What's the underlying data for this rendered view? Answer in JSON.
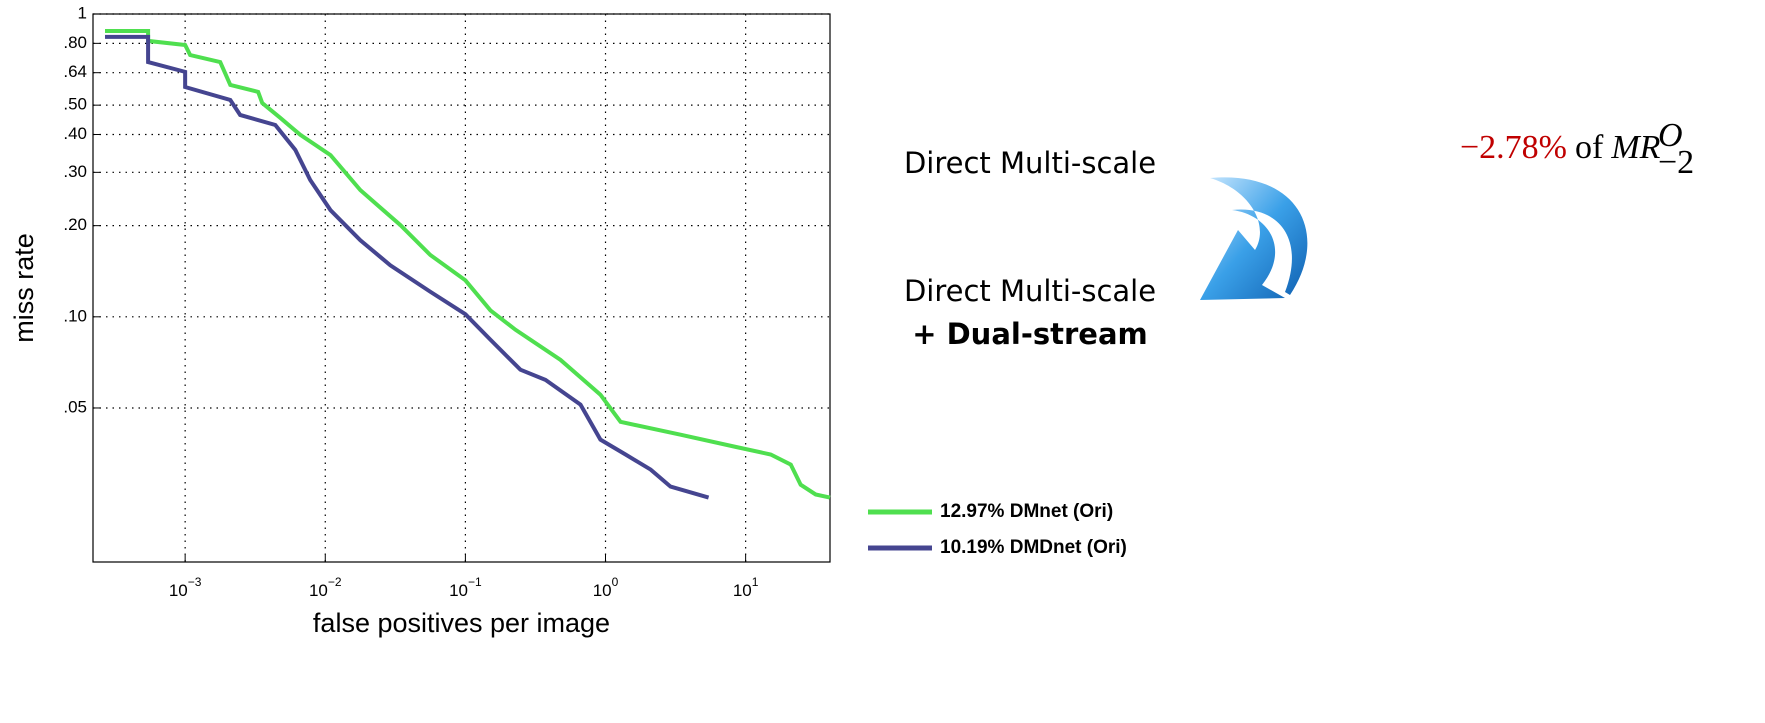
{
  "chart_data": {
    "type": "line",
    "xlabel": "false positives per image",
    "ylabel": "miss rate",
    "xscale": "log",
    "yscale": "log",
    "grid": true,
    "legend": "lower right",
    "xlim": [
      0.00022,
      40
    ],
    "ylim": [
      0.0155,
      1
    ],
    "xticks": [
      {
        "value": 0.001,
        "label": "10",
        "exponent": "−3"
      },
      {
        "value": 0.01,
        "label": "10",
        "exponent": "−2"
      },
      {
        "value": 0.1,
        "label": "10",
        "exponent": "−1"
      },
      {
        "value": 1,
        "label": "10",
        "exponent": "0"
      },
      {
        "value": 10,
        "label": "10",
        "exponent": "1"
      }
    ],
    "yticks": [
      {
        "value": 0.05,
        "label": ".05"
      },
      {
        "value": 0.1,
        "label": ".10"
      },
      {
        "value": 0.2,
        "label": ".20"
      },
      {
        "value": 0.3,
        "label": ".30"
      },
      {
        "value": 0.4,
        "label": ".40"
      },
      {
        "value": 0.5,
        "label": ".50"
      },
      {
        "value": 0.64,
        "label": ".64"
      },
      {
        "value": 0.8,
        "label": ".80"
      },
      1
    ],
    "series": [
      {
        "name": "12.97% DMnet (Ori)",
        "color": "#4fdf4f",
        "x": [
          0.000268,
          0.000544,
          0.000544,
          0.001,
          0.001086,
          0.00178,
          0.0021,
          0.00332,
          0.00355,
          0.00477,
          0.00663,
          0.0109,
          0.0178,
          0.0343,
          0.0562,
          0.1,
          0.151,
          0.228,
          0.477,
          0.92,
          1.28,
          3.43,
          8.48,
          15.1,
          21,
          24.7,
          31.6,
          40
        ],
        "values": [
          0.879,
          0.879,
          0.815,
          0.79,
          0.732,
          0.694,
          0.583,
          0.553,
          0.508,
          0.454,
          0.399,
          0.342,
          0.262,
          0.201,
          0.16,
          0.132,
          0.105,
          0.0906,
          0.0721,
          0.0553,
          0.045,
          0.0408,
          0.0372,
          0.0351,
          0.0325,
          0.0279,
          0.0259,
          0.0253
        ]
      },
      {
        "name": "10.19% DMDnet (Ori)",
        "color": "#454590",
        "x": [
          0.000268,
          0.000544,
          0.000544,
          0.001,
          0.001,
          0.0021,
          0.00247,
          0.0044,
          0.00611,
          0.00781,
          0.0109,
          0.0178,
          0.0291,
          0.0562,
          0.1,
          0.151,
          0.247,
          0.373,
          0.663,
          0.92,
          1.39,
          2.1,
          2.91,
          5.44
        ],
        "values": [
          0.84,
          0.84,
          0.694,
          0.644,
          0.574,
          0.52,
          0.464,
          0.43,
          0.356,
          0.283,
          0.225,
          0.179,
          0.148,
          0.121,
          0.102,
          0.084,
          0.0669,
          0.0619,
          0.0513,
          0.0393,
          0.0351,
          0.0313,
          0.0275,
          0.0253
        ]
      }
    ],
    "annotations": {
      "before": "Direct Multi-scale",
      "after": "Direct Multi-scale",
      "after_extra": "+ Dual-stream",
      "delta": "−2.78%",
      "connector": "of",
      "metric": "MR",
      "metric_sup": "O",
      "metric_sub": "−2"
    }
  }
}
